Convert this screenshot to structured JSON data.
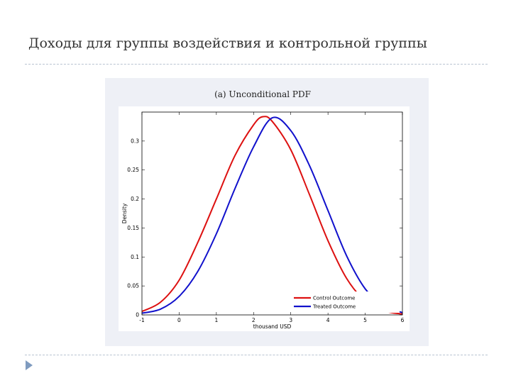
{
  "slide": {
    "title": "Доходы для группы воздействия и контрольной группы"
  },
  "chart_data": {
    "type": "line",
    "title": "(a) Unconditional PDF",
    "xlabel": "thousand USD",
    "ylabel": "Density",
    "xlim": [
      -1,
      6
    ],
    "ylim": [
      0,
      0.35
    ],
    "xticks": [
      -1,
      0,
      1,
      2,
      3,
      4,
      5,
      6
    ],
    "yticks": [
      0,
      0.05,
      0.1,
      0.15,
      0.2,
      0.25,
      0.3
    ],
    "ytick_labels": [
      "0",
      "0.05",
      "0.1",
      "0.15",
      "0.2",
      "0.25",
      "0.3"
    ],
    "grid": false,
    "legend_position": "bottom-right",
    "series": [
      {
        "name": "Control Outcome",
        "color": "#dd1111",
        "x": [
          -1,
          -0.5,
          0,
          0.5,
          1,
          1.5,
          2,
          2.25,
          2.5,
          3,
          3.5,
          4,
          4.5,
          5,
          5.5,
          6
        ],
        "y": [
          0.006,
          0.022,
          0.06,
          0.125,
          0.2,
          0.275,
          0.328,
          0.342,
          0.334,
          0.285,
          0.208,
          0.128,
          0.063,
          0.024,
          0.007,
          0.0015
        ]
      },
      {
        "name": "Treated Outcome",
        "color": "#1111cc",
        "x": [
          -1,
          -0.5,
          0,
          0.5,
          1,
          1.5,
          2,
          2.5,
          3,
          3.5,
          4,
          4.5,
          5,
          5.5,
          6
        ],
        "y": [
          0.003,
          0.01,
          0.032,
          0.075,
          0.14,
          0.218,
          0.29,
          0.34,
          0.318,
          0.258,
          0.18,
          0.102,
          0.045,
          0.015,
          0.004
        ]
      }
    ]
  }
}
